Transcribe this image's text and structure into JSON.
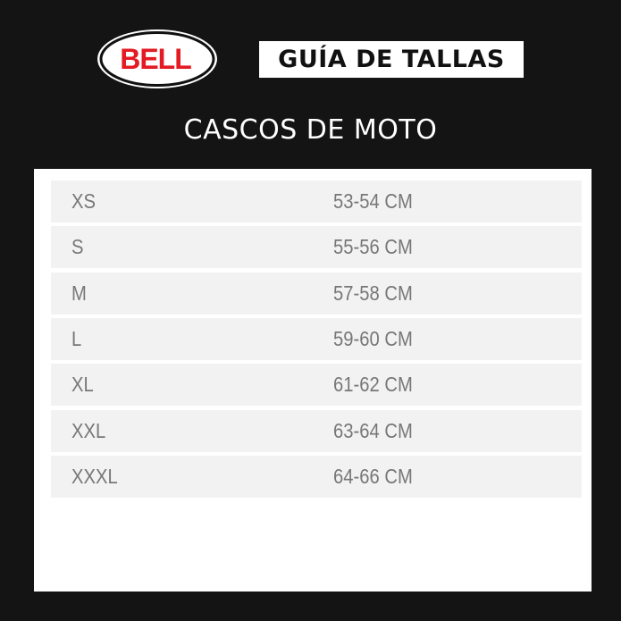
{
  "logo": {
    "text": "BELL",
    "color": "#e31b23"
  },
  "header": {
    "title": "GUÍA DE TALLAS",
    "subtitle": "CASCOS DE MOTO"
  },
  "table": {
    "rows": [
      {
        "size": "XS",
        "range": "53-54 CM"
      },
      {
        "size": "S",
        "range": "55-56 CM"
      },
      {
        "size": "M",
        "range": "57-58 CM"
      },
      {
        "size": "L",
        "range": "59-60 CM"
      },
      {
        "size": "XL",
        "range": "61-62 CM"
      },
      {
        "size": "XXL",
        "range": "63-64 CM"
      },
      {
        "size": "XXXL",
        "range": "64-66 CM"
      }
    ]
  }
}
